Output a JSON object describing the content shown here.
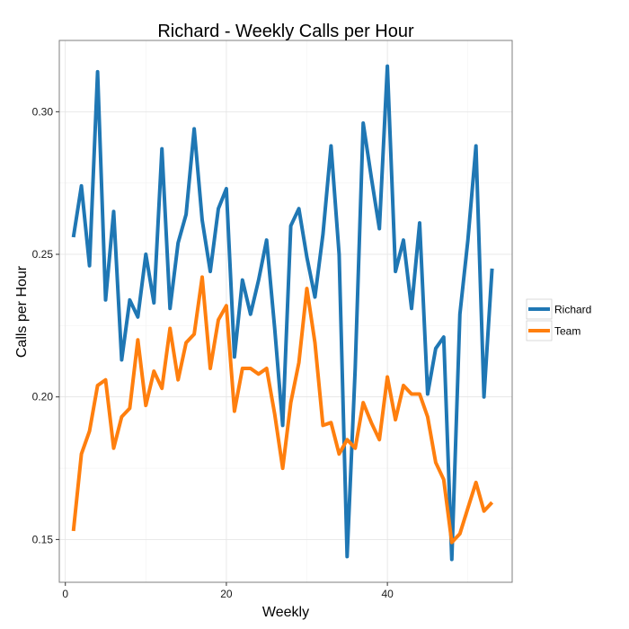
{
  "chart_data": {
    "type": "line",
    "title": "Richard - Weekly Calls per Hour",
    "xlabel": "Weekly",
    "ylabel": "Calls per Hour",
    "xlim": [
      -0.75,
      55.5
    ],
    "ylim": [
      0.135,
      0.325
    ],
    "xticks": [
      0,
      20,
      40
    ],
    "yticks": [
      0.15,
      0.2,
      0.25,
      0.3
    ],
    "ytick_labels": [
      "0.15",
      "0.20",
      "0.25",
      "0.30"
    ],
    "grid": true,
    "legend_position": "right",
    "x": [
      1,
      2,
      3,
      4,
      5,
      6,
      7,
      8,
      9,
      10,
      11,
      12,
      13,
      14,
      15,
      16,
      17,
      18,
      19,
      20,
      21,
      22,
      23,
      24,
      25,
      26,
      27,
      28,
      29,
      30,
      31,
      32,
      33,
      34,
      35,
      36,
      37,
      38,
      39,
      40,
      41,
      42,
      43,
      44,
      45,
      46,
      47,
      48,
      49,
      50,
      51,
      52,
      53
    ],
    "series": [
      {
        "name": "Richard",
        "color": "#1f77b4",
        "values": [
          0.256,
          0.274,
          0.246,
          0.314,
          0.234,
          0.265,
          0.213,
          0.234,
          0.228,
          0.25,
          0.233,
          0.287,
          0.231,
          0.254,
          0.264,
          0.294,
          0.262,
          0.244,
          0.266,
          0.273,
          0.214,
          0.241,
          0.229,
          0.241,
          0.255,
          0.224,
          0.19,
          0.26,
          0.266,
          0.249,
          0.235,
          0.257,
          0.288,
          0.25,
          0.144,
          0.21,
          0.296,
          0.277,
          0.259,
          0.316,
          0.244,
          0.255,
          0.231,
          0.261,
          0.201,
          0.217,
          0.221,
          0.143,
          0.229,
          0.255,
          0.288,
          0.2,
          0.245
        ]
      },
      {
        "name": "Team",
        "color": "#ff7f0e",
        "values": [
          0.153,
          0.18,
          0.188,
          0.204,
          0.206,
          0.182,
          0.193,
          0.196,
          0.22,
          0.197,
          0.209,
          0.203,
          0.224,
          0.206,
          0.219,
          0.222,
          0.242,
          0.21,
          0.227,
          0.232,
          0.195,
          0.21,
          0.21,
          0.208,
          0.21,
          0.194,
          0.175,
          0.198,
          0.212,
          0.238,
          0.219,
          0.19,
          0.191,
          0.18,
          0.185,
          0.182,
          0.198,
          0.191,
          0.185,
          0.207,
          0.192,
          0.204,
          0.201,
          0.201,
          0.193,
          0.177,
          0.171,
          0.149,
          0.152,
          0.161,
          0.17,
          0.16,
          0.163
        ]
      }
    ]
  }
}
